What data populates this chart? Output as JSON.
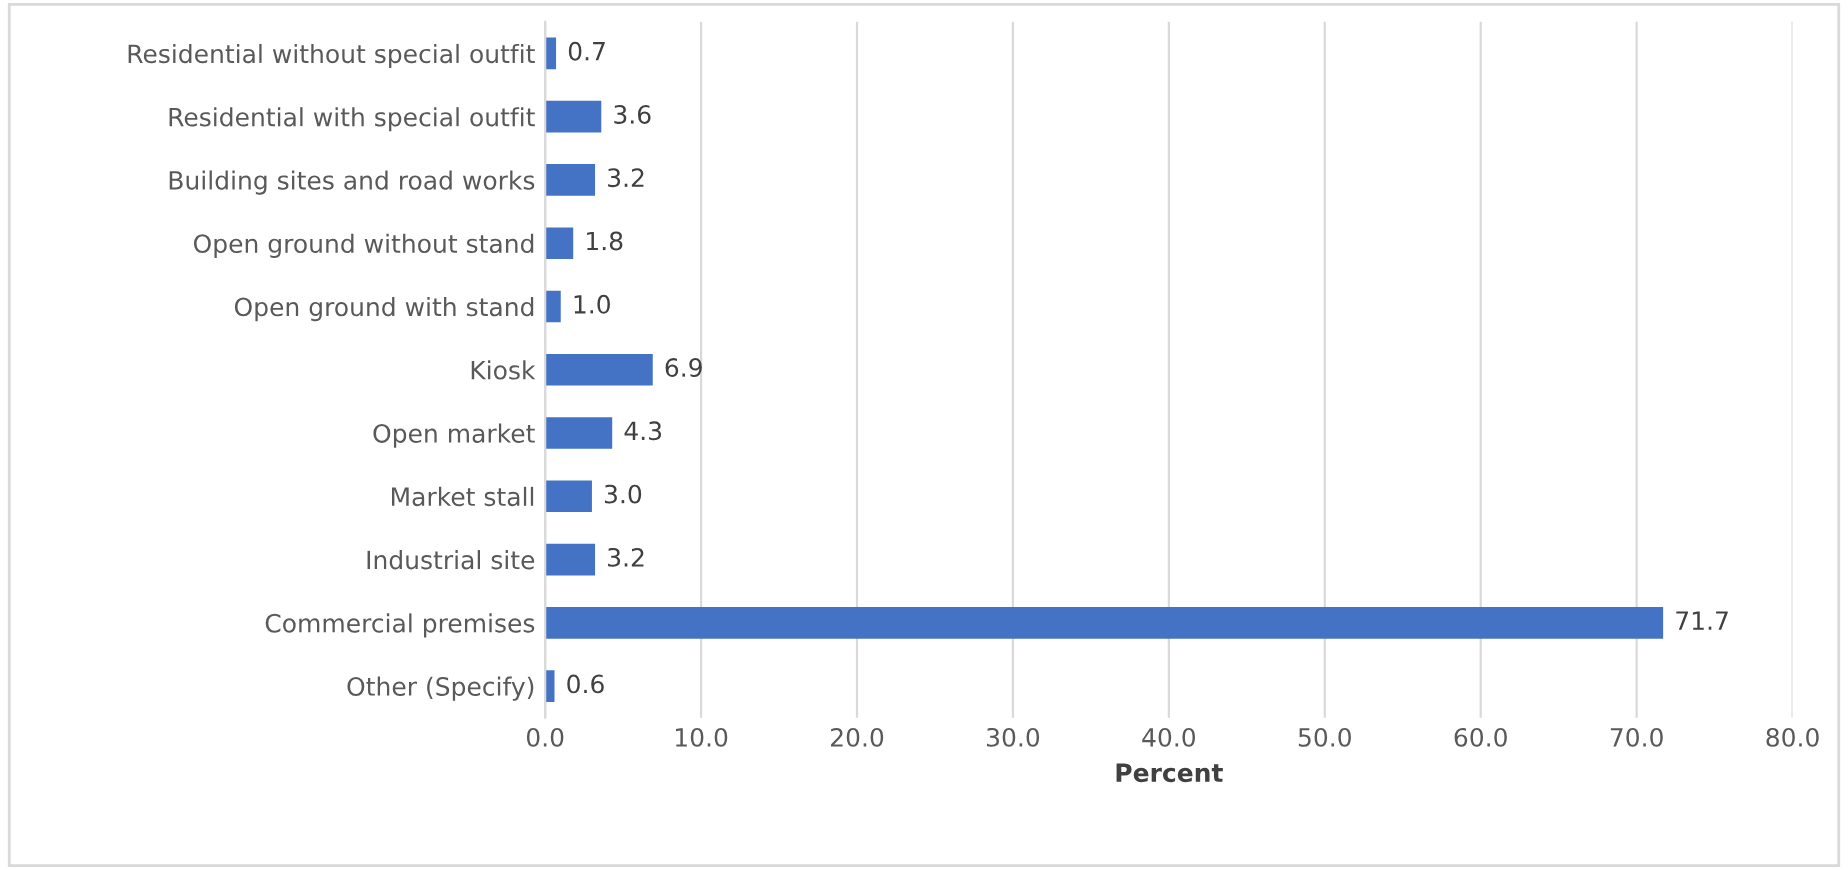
{
  "chart_data": {
    "type": "bar",
    "orientation": "horizontal",
    "xlabel": "Percent",
    "categories": [
      "Residential without special outfit",
      "Residential with special outfit",
      "Building sites and road works",
      "Open ground without stand",
      "Open ground with stand",
      "Kiosk",
      "Open market",
      "Market stall",
      "Industrial site",
      "Commercial premises",
      "Other (Specify)"
    ],
    "values": [
      0.7,
      3.6,
      3.2,
      1.8,
      1.0,
      6.9,
      4.3,
      3.0,
      3.2,
      71.7,
      0.6
    ],
    "value_labels": [
      "0.7",
      "3.6",
      "3.2",
      "1.8",
      "1.0",
      "6.9",
      "4.3",
      "3.0",
      "3.2",
      "71.7",
      "0.6"
    ],
    "color": "#4472c4",
    "xlim": [
      0,
      80
    ],
    "xticks": [
      {
        "value": 0,
        "label": "0.0"
      },
      {
        "value": 10,
        "label": "10.0"
      },
      {
        "value": 20,
        "label": "20.0"
      },
      {
        "value": 30,
        "label": "30.0"
      },
      {
        "value": 40,
        "label": "40.0"
      },
      {
        "value": 50,
        "label": "50.0"
      },
      {
        "value": 60,
        "label": "60.0"
      },
      {
        "value": 70,
        "label": "70.0"
      },
      {
        "value": 80,
        "label": "80.0"
      }
    ],
    "grid": "x"
  }
}
